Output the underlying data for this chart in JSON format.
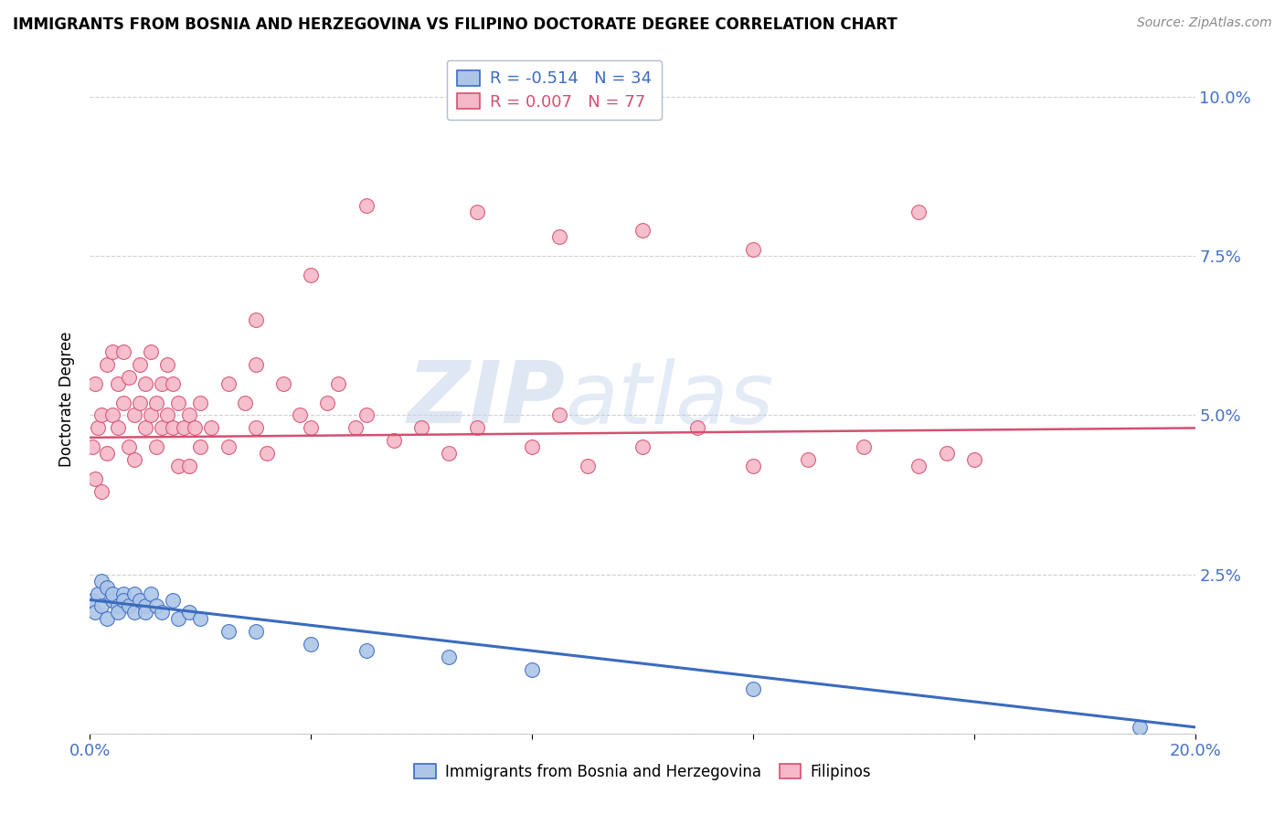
{
  "title": "IMMIGRANTS FROM BOSNIA AND HERZEGOVINA VS FILIPINO DOCTORATE DEGREE CORRELATION CHART",
  "source": "Source: ZipAtlas.com",
  "ylabel": "Doctorate Degree",
  "xlim": [
    0.0,
    0.2
  ],
  "ylim": [
    0.0,
    0.105
  ],
  "yticks": [
    0.0,
    0.025,
    0.05,
    0.075,
    0.1
  ],
  "ytick_labels": [
    "",
    "2.5%",
    "5.0%",
    "7.5%",
    "10.0%"
  ],
  "xticks": [
    0.0,
    0.04,
    0.08,
    0.12,
    0.16,
    0.2
  ],
  "xtick_labels": [
    "0.0%",
    "",
    "",
    "",
    "",
    "20.0%"
  ],
  "legend_r_bosnia": "-0.514",
  "legend_n_bosnia": "34",
  "legend_r_filipino": "0.007",
  "legend_n_filipino": "77",
  "color_bosnia": "#adc6e8",
  "color_filipino": "#f5b8c8",
  "color_bosnia_line": "#3a6bbf",
  "color_filipino_line": "#d45070",
  "watermark_zip": "ZIP",
  "watermark_atlas": "atlas",
  "bosnia_x": [
    0.0005,
    0.001,
    0.0015,
    0.002,
    0.002,
    0.003,
    0.003,
    0.004,
    0.004,
    0.005,
    0.005,
    0.006,
    0.006,
    0.007,
    0.008,
    0.008,
    0.009,
    0.01,
    0.01,
    0.011,
    0.012,
    0.013,
    0.015,
    0.016,
    0.018,
    0.02,
    0.025,
    0.03,
    0.04,
    0.05,
    0.065,
    0.08,
    0.12,
    0.19
  ],
  "bosnia_y": [
    0.021,
    0.019,
    0.022,
    0.02,
    0.024,
    0.018,
    0.023,
    0.021,
    0.022,
    0.02,
    0.019,
    0.022,
    0.021,
    0.02,
    0.022,
    0.019,
    0.021,
    0.02,
    0.019,
    0.022,
    0.02,
    0.019,
    0.021,
    0.018,
    0.019,
    0.018,
    0.016,
    0.016,
    0.014,
    0.013,
    0.012,
    0.01,
    0.007,
    0.001
  ],
  "filipino_x": [
    0.0005,
    0.001,
    0.001,
    0.0015,
    0.002,
    0.002,
    0.003,
    0.003,
    0.004,
    0.004,
    0.005,
    0.005,
    0.006,
    0.006,
    0.007,
    0.007,
    0.008,
    0.008,
    0.009,
    0.009,
    0.01,
    0.01,
    0.011,
    0.011,
    0.012,
    0.012,
    0.013,
    0.013,
    0.014,
    0.014,
    0.015,
    0.015,
    0.016,
    0.016,
    0.017,
    0.018,
    0.018,
    0.019,
    0.02,
    0.02,
    0.022,
    0.025,
    0.025,
    0.028,
    0.03,
    0.03,
    0.032,
    0.035,
    0.038,
    0.04,
    0.043,
    0.045,
    0.048,
    0.05,
    0.055,
    0.06,
    0.065,
    0.07,
    0.08,
    0.085,
    0.09,
    0.1,
    0.11,
    0.12,
    0.13,
    0.14,
    0.15,
    0.155,
    0.03,
    0.04,
    0.05,
    0.07,
    0.085,
    0.1,
    0.12,
    0.15,
    0.16
  ],
  "filipino_y": [
    0.045,
    0.04,
    0.055,
    0.048,
    0.038,
    0.05,
    0.058,
    0.044,
    0.05,
    0.06,
    0.048,
    0.055,
    0.052,
    0.06,
    0.045,
    0.056,
    0.05,
    0.043,
    0.052,
    0.058,
    0.048,
    0.055,
    0.05,
    0.06,
    0.045,
    0.052,
    0.048,
    0.055,
    0.05,
    0.058,
    0.048,
    0.055,
    0.052,
    0.042,
    0.048,
    0.05,
    0.042,
    0.048,
    0.052,
    0.045,
    0.048,
    0.055,
    0.045,
    0.052,
    0.048,
    0.058,
    0.044,
    0.055,
    0.05,
    0.048,
    0.052,
    0.055,
    0.048,
    0.05,
    0.046,
    0.048,
    0.044,
    0.048,
    0.045,
    0.05,
    0.042,
    0.045,
    0.048,
    0.042,
    0.043,
    0.045,
    0.042,
    0.044,
    0.065,
    0.072,
    0.083,
    0.082,
    0.078,
    0.079,
    0.076,
    0.082,
    0.043
  ],
  "bosnia_line_x": [
    0.0,
    0.2
  ],
  "bosnia_line_y": [
    0.021,
    0.001
  ],
  "filipino_line_x": [
    0.0,
    0.2
  ],
  "filipino_line_y": [
    0.0465,
    0.048
  ]
}
